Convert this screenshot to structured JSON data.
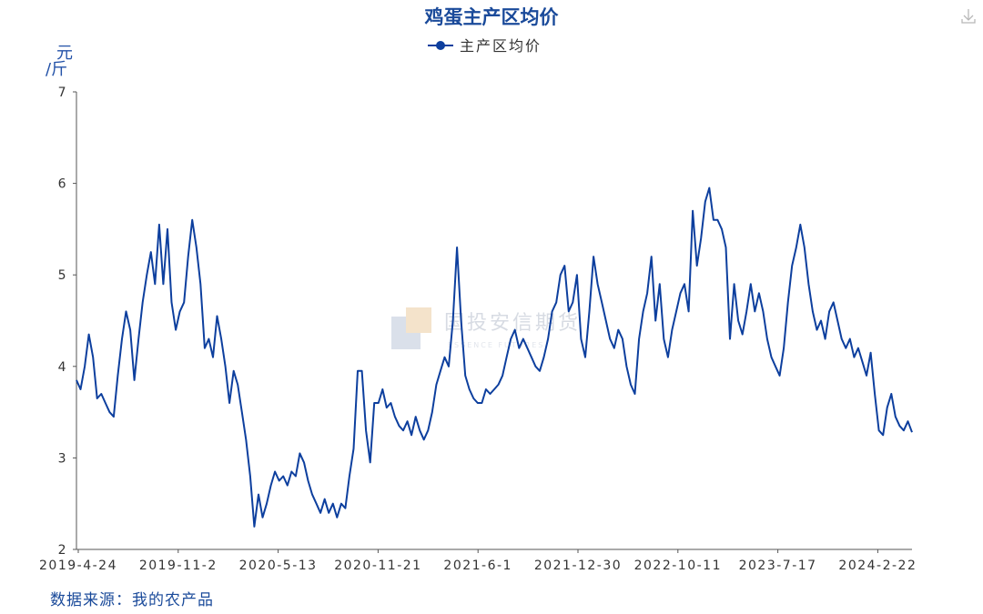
{
  "chart_data": {
    "type": "line",
    "title": "鸡蛋主产区均价",
    "ylabel": "元/斤",
    "ylabel_top": "元",
    "ylabel_bottom": "/斤",
    "xlabel": "",
    "ylim": [
      2,
      7
    ],
    "yticks": [
      2,
      3,
      4,
      5,
      6,
      7
    ],
    "legend_position": "top-center",
    "grid": false,
    "xticks": [
      "2019-4-24",
      "2019-11-2",
      "2020-5-13",
      "2020-11-21",
      "2021-6-1",
      "2021-12-30",
      "2022-10-11",
      "2023-7-17",
      "2024-2-22"
    ],
    "series": [
      {
        "name": "主产区均价",
        "color": "#0d3f9e",
        "points": [
          [
            0,
            3.85
          ],
          [
            2,
            3.75
          ],
          [
            4,
            4.0
          ],
          [
            6,
            4.35
          ],
          [
            8,
            4.1
          ],
          [
            10,
            3.65
          ],
          [
            12,
            3.7
          ],
          [
            14,
            3.6
          ],
          [
            16,
            3.5
          ],
          [
            18,
            3.45
          ],
          [
            20,
            3.9
          ],
          [
            22,
            4.3
          ],
          [
            24,
            4.6
          ],
          [
            26,
            4.4
          ],
          [
            28,
            3.85
          ],
          [
            30,
            4.3
          ],
          [
            32,
            4.7
          ],
          [
            34,
            5.0
          ],
          [
            36,
            5.25
          ],
          [
            38,
            4.9
          ],
          [
            40,
            5.55
          ],
          [
            42,
            4.9
          ],
          [
            44,
            5.5
          ],
          [
            46,
            4.7
          ],
          [
            48,
            4.4
          ],
          [
            50,
            4.6
          ],
          [
            52,
            4.7
          ],
          [
            54,
            5.2
          ],
          [
            56,
            5.6
          ],
          [
            58,
            5.3
          ],
          [
            60,
            4.9
          ],
          [
            62,
            4.2
          ],
          [
            64,
            4.3
          ],
          [
            66,
            4.1
          ],
          [
            68,
            4.55
          ],
          [
            70,
            4.3
          ],
          [
            72,
            4.0
          ],
          [
            74,
            3.6
          ],
          [
            76,
            3.95
          ],
          [
            78,
            3.8
          ],
          [
            80,
            3.5
          ],
          [
            82,
            3.2
          ],
          [
            84,
            2.8
          ],
          [
            86,
            2.25
          ],
          [
            88,
            2.6
          ],
          [
            90,
            2.35
          ],
          [
            92,
            2.5
          ],
          [
            94,
            2.7
          ],
          [
            96,
            2.85
          ],
          [
            98,
            2.75
          ],
          [
            100,
            2.8
          ],
          [
            102,
            2.7
          ],
          [
            104,
            2.85
          ],
          [
            106,
            2.8
          ],
          [
            108,
            3.05
          ],
          [
            110,
            2.95
          ],
          [
            112,
            2.75
          ],
          [
            114,
            2.6
          ],
          [
            116,
            2.5
          ],
          [
            118,
            2.4
          ],
          [
            120,
            2.55
          ],
          [
            122,
            2.4
          ],
          [
            124,
            2.5
          ],
          [
            126,
            2.35
          ],
          [
            128,
            2.5
          ],
          [
            130,
            2.45
          ],
          [
            132,
            2.8
          ],
          [
            134,
            3.1
          ],
          [
            136,
            3.95
          ],
          [
            138,
            3.95
          ],
          [
            140,
            3.3
          ],
          [
            142,
            2.95
          ],
          [
            144,
            3.6
          ],
          [
            146,
            3.6
          ],
          [
            148,
            3.75
          ],
          [
            150,
            3.55
          ],
          [
            152,
            3.6
          ],
          [
            154,
            3.45
          ],
          [
            156,
            3.35
          ],
          [
            158,
            3.3
          ],
          [
            160,
            3.4
          ],
          [
            162,
            3.25
          ],
          [
            164,
            3.45
          ],
          [
            166,
            3.3
          ],
          [
            168,
            3.2
          ],
          [
            170,
            3.3
          ],
          [
            172,
            3.5
          ],
          [
            174,
            3.8
          ],
          [
            176,
            3.95
          ],
          [
            178,
            4.1
          ],
          [
            180,
            4.0
          ],
          [
            182,
            4.5
          ],
          [
            184,
            5.3
          ],
          [
            186,
            4.5
          ],
          [
            188,
            3.9
          ],
          [
            190,
            3.75
          ],
          [
            192,
            3.65
          ],
          [
            194,
            3.6
          ],
          [
            196,
            3.6
          ],
          [
            198,
            3.75
          ],
          [
            200,
            3.7
          ],
          [
            202,
            3.75
          ],
          [
            204,
            3.8
          ],
          [
            206,
            3.9
          ],
          [
            208,
            4.1
          ],
          [
            210,
            4.3
          ],
          [
            212,
            4.4
          ],
          [
            214,
            4.2
          ],
          [
            216,
            4.3
          ],
          [
            218,
            4.2
          ],
          [
            220,
            4.1
          ],
          [
            222,
            4.0
          ],
          [
            224,
            3.95
          ],
          [
            226,
            4.1
          ],
          [
            228,
            4.3
          ],
          [
            230,
            4.6
          ],
          [
            232,
            4.7
          ],
          [
            234,
            5.0
          ],
          [
            236,
            5.1
          ],
          [
            238,
            4.6
          ],
          [
            240,
            4.7
          ],
          [
            242,
            5.0
          ],
          [
            244,
            4.3
          ],
          [
            246,
            4.1
          ],
          [
            248,
            4.6
          ],
          [
            250,
            5.2
          ],
          [
            252,
            4.9
          ],
          [
            254,
            4.7
          ],
          [
            256,
            4.5
          ],
          [
            258,
            4.3
          ],
          [
            260,
            4.2
          ],
          [
            262,
            4.4
          ],
          [
            264,
            4.3
          ],
          [
            266,
            4.0
          ],
          [
            268,
            3.8
          ],
          [
            270,
            3.7
          ],
          [
            272,
            4.3
          ],
          [
            274,
            4.6
          ],
          [
            276,
            4.8
          ],
          [
            278,
            5.2
          ],
          [
            280,
            4.5
          ],
          [
            282,
            4.9
          ],
          [
            284,
            4.3
          ],
          [
            286,
            4.1
          ],
          [
            288,
            4.4
          ],
          [
            290,
            4.6
          ],
          [
            292,
            4.8
          ],
          [
            294,
            4.9
          ],
          [
            296,
            4.6
          ],
          [
            298,
            5.7
          ],
          [
            300,
            5.1
          ],
          [
            302,
            5.4
          ],
          [
            304,
            5.8
          ],
          [
            306,
            5.95
          ],
          [
            308,
            5.6
          ],
          [
            310,
            5.6
          ],
          [
            312,
            5.5
          ],
          [
            314,
            5.3
          ],
          [
            316,
            4.3
          ],
          [
            318,
            4.9
          ],
          [
            320,
            4.5
          ],
          [
            322,
            4.35
          ],
          [
            324,
            4.6
          ],
          [
            326,
            4.9
          ],
          [
            328,
            4.6
          ],
          [
            330,
            4.8
          ],
          [
            332,
            4.6
          ],
          [
            334,
            4.3
          ],
          [
            336,
            4.1
          ],
          [
            338,
            4.0
          ],
          [
            340,
            3.9
          ],
          [
            342,
            4.2
          ],
          [
            344,
            4.7
          ],
          [
            346,
            5.1
          ],
          [
            348,
            5.3
          ],
          [
            350,
            5.55
          ],
          [
            352,
            5.3
          ],
          [
            354,
            4.9
          ],
          [
            356,
            4.6
          ],
          [
            358,
            4.4
          ],
          [
            360,
            4.5
          ],
          [
            362,
            4.3
          ],
          [
            364,
            4.6
          ],
          [
            366,
            4.7
          ],
          [
            368,
            4.5
          ],
          [
            370,
            4.3
          ],
          [
            372,
            4.2
          ],
          [
            374,
            4.3
          ],
          [
            376,
            4.1
          ],
          [
            378,
            4.2
          ],
          [
            380,
            4.05
          ],
          [
            382,
            3.9
          ],
          [
            384,
            4.15
          ],
          [
            386,
            3.7
          ],
          [
            388,
            3.3
          ],
          [
            390,
            3.25
          ],
          [
            392,
            3.55
          ],
          [
            394,
            3.7
          ],
          [
            396,
            3.45
          ],
          [
            398,
            3.35
          ],
          [
            400,
            3.3
          ],
          [
            402,
            3.4
          ],
          [
            404,
            3.28
          ]
        ]
      }
    ]
  },
  "source": "数据来源：我的农产品",
  "watermark": {
    "text": "国投安信期货",
    "subtext": "ESSENCE FUTURES"
  },
  "icons": {
    "download": "download-icon"
  }
}
